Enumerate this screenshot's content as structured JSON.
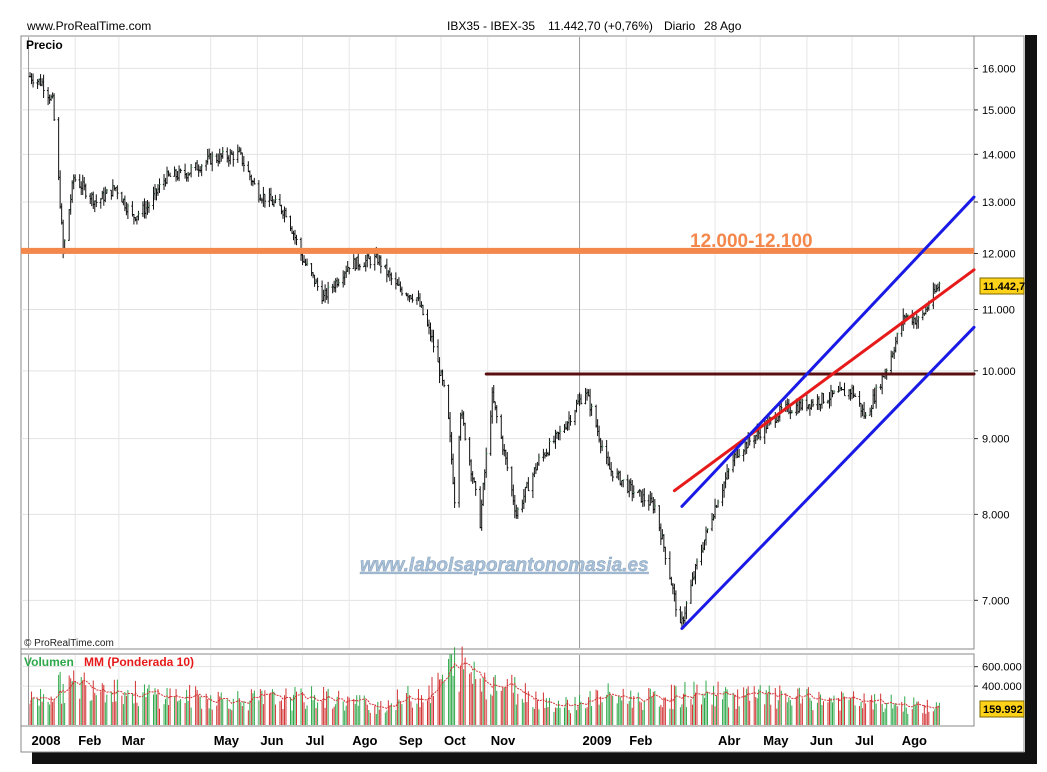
{
  "header": {
    "site": "www.ProRealTime.com",
    "symbol": "IBX35 - IBEX-35",
    "price_change": "11.442,70 (+0,76%)",
    "period": "Diario",
    "date": "28 Ago"
  },
  "copyright": "© ProRealTime.com",
  "watermark": "www.labolsaporantonomasia.es",
  "price_panel": {
    "label": "Precio",
    "y_ticks": [
      "16.000",
      "15.000",
      "14.000",
      "13.000",
      "12.000",
      "11.000",
      "10.000",
      "9.000",
      "8.000",
      "7.000"
    ],
    "last_price_label": "11.442,7",
    "resistance_label": "12.000-12.100"
  },
  "volume_panel": {
    "label_volume": "Volumen",
    "label_ma": "MM (Ponderada 10)",
    "y_ticks": [
      "600.000",
      "400.000"
    ],
    "last_value_label": "159.992"
  },
  "x_ticks": [
    "2008",
    "Feb",
    "Mar",
    "May",
    "Jun",
    "Jul",
    "Ago",
    "Sep",
    "Oct",
    "Nov",
    "2009",
    "Feb",
    "Abr",
    "May",
    "Jun",
    "Jul",
    "Ago"
  ],
  "colors": {
    "resistance": "#f4874b",
    "horizontal_level": "#5a1010",
    "channel": "#1a1ae6",
    "trendline": "#e61a1a",
    "volume_up": "#2ea84a",
    "volume_down": "#d23232",
    "moving_average": "#d23232",
    "label_volume": "#2ea84a",
    "label_ma": "#e61a1a"
  },
  "chart_data": {
    "type": "line",
    "series": [
      {
        "name": "IBX35 - IBEX-35",
        "points": [
          [
            "2008-01-02",
            15800
          ],
          [
            "2008-01-10",
            15650
          ],
          [
            "2008-01-17",
            15200
          ],
          [
            "2008-01-22",
            13000
          ],
          [
            "2008-01-24",
            12000
          ],
          [
            "2008-01-31",
            13500
          ],
          [
            "2008-02-15",
            13000
          ],
          [
            "2008-02-28",
            13300
          ],
          [
            "2008-03-10",
            12700
          ],
          [
            "2008-03-20",
            12900
          ],
          [
            "2008-04-01",
            13500
          ],
          [
            "2008-04-15",
            13600
          ],
          [
            "2008-05-01",
            13900
          ],
          [
            "2008-05-20",
            14000
          ],
          [
            "2008-06-01",
            13200
          ],
          [
            "2008-06-20",
            12800
          ],
          [
            "2008-07-01",
            11900
          ],
          [
            "2008-07-15",
            11200
          ],
          [
            "2008-08-01",
            11800
          ],
          [
            "2008-08-20",
            11900
          ],
          [
            "2008-09-01",
            11400
          ],
          [
            "2008-09-15",
            11200
          ],
          [
            "2008-09-25",
            10500
          ],
          [
            "2008-10-05",
            9500
          ],
          [
            "2008-10-10",
            8200
          ],
          [
            "2008-10-14",
            9400
          ],
          [
            "2008-10-27",
            7900
          ],
          [
            "2008-11-04",
            9600
          ],
          [
            "2008-11-20",
            8000
          ],
          [
            "2008-12-05",
            8700
          ],
          [
            "2008-12-20",
            9100
          ],
          [
            "2009-01-05",
            9700
          ],
          [
            "2009-01-20",
            8600
          ],
          [
            "2009-02-05",
            8300
          ],
          [
            "2009-02-20",
            8100
          ],
          [
            "2009-03-09",
            6700
          ],
          [
            "2009-03-20",
            7400
          ],
          [
            "2009-04-01",
            8100
          ],
          [
            "2009-04-15",
            8800
          ],
          [
            "2009-05-01",
            9100
          ],
          [
            "2009-05-15",
            9400
          ],
          [
            "2009-06-01",
            9500
          ],
          [
            "2009-06-15",
            9600
          ],
          [
            "2009-07-01",
            9700
          ],
          [
            "2009-07-10",
            9300
          ],
          [
            "2009-07-25",
            10100
          ],
          [
            "2009-08-05",
            10900
          ],
          [
            "2009-08-15",
            10800
          ],
          [
            "2009-08-28",
            11442.7
          ]
        ]
      },
      {
        "name": "Volumen",
        "points": [
          [
            "2008-01-02",
            250000
          ],
          [
            "2008-01-22",
            380000
          ],
          [
            "2008-02-15",
            450000
          ],
          [
            "2008-03-10",
            320000
          ],
          [
            "2008-04-15",
            290000
          ],
          [
            "2008-05-20",
            260000
          ],
          [
            "2008-06-20",
            270000
          ],
          [
            "2008-07-15",
            280000
          ],
          [
            "2008-08-20",
            200000
          ],
          [
            "2008-09-25",
            350000
          ],
          [
            "2008-10-10",
            620000
          ],
          [
            "2008-10-27",
            500000
          ],
          [
            "2008-11-20",
            360000
          ],
          [
            "2008-12-20",
            200000
          ],
          [
            "2009-01-20",
            300000
          ],
          [
            "2009-02-20",
            260000
          ],
          [
            "2009-03-20",
            330000
          ],
          [
            "2009-04-15",
            300000
          ],
          [
            "2009-05-15",
            280000
          ],
          [
            "2009-06-15",
            260000
          ],
          [
            "2009-07-15",
            230000
          ],
          [
            "2009-08-15",
            200000
          ],
          [
            "2009-08-28",
            159992
          ]
        ]
      }
    ],
    "annotations": [
      {
        "type": "hline",
        "y": 12050,
        "label": "12.000-12.100"
      },
      {
        "type": "segment",
        "from": [
          "2008-10-31",
          9950
        ],
        "to": [
          "2009-09-20",
          9950
        ]
      },
      {
        "type": "segment",
        "from": [
          "2009-03-05",
          8300
        ],
        "to": [
          "2009-09-20",
          11700
        ]
      },
      {
        "type": "segment",
        "from": [
          "2009-03-10",
          8100
        ],
        "to": [
          "2009-09-20",
          13100
        ]
      },
      {
        "type": "segment",
        "from": [
          "2009-03-10",
          6700
        ],
        "to": [
          "2009-09-20",
          10700
        ]
      }
    ],
    "y_scale": "log",
    "ylim": [
      6500,
      16800
    ],
    "volume_ylim": [
      0,
      720000
    ],
    "xlim": [
      "2007-12-27",
      "2009-09-20"
    ],
    "grid": true
  }
}
